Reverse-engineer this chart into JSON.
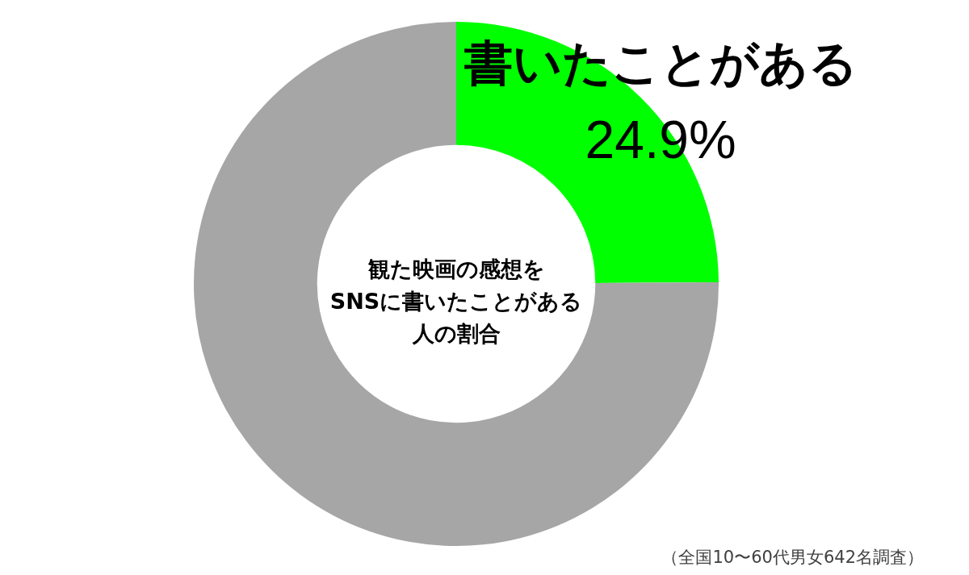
{
  "chart_data": {
    "type": "donut",
    "title": "観た映画の感想をSNSに書いたことがある人の割合",
    "categories": [
      "書いたことがある",
      null
    ],
    "values": [
      24.9,
      75.1
    ],
    "colors": [
      "#00ff00",
      "#a6a6a6"
    ],
    "value_labels": [
      "24.9%",
      null
    ],
    "annotations": [
      "（全国10〜60代男女642名調査）"
    ]
  }
}
